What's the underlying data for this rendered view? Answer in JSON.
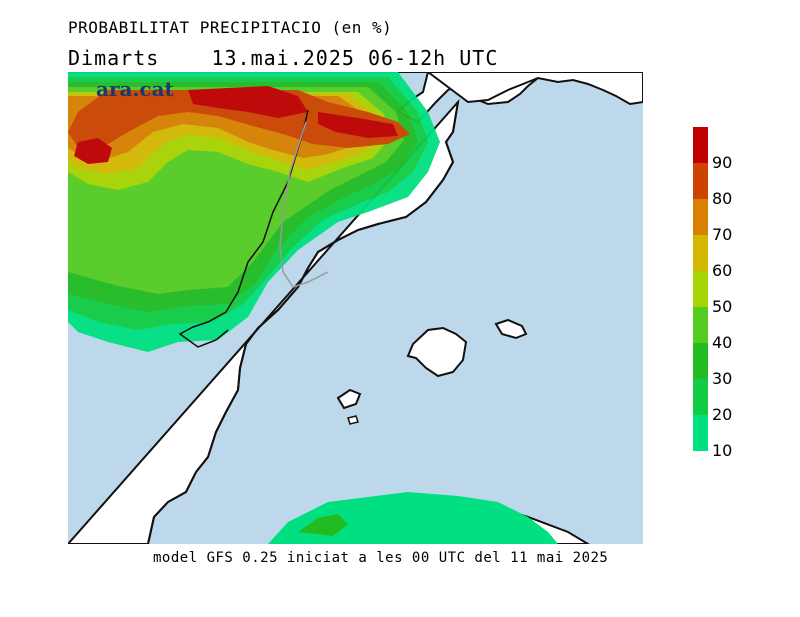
{
  "header": {
    "title": "PROBABILITAT PRECIPITACIO (en %)",
    "subtitle": "Dimarts    13.mai.2025 06-12h UTC"
  },
  "logo_text": "ara.cat",
  "footer": "model GFS 0.25 iniciat a les 00 UTC del 11 mai 2025",
  "legend": {
    "labels": [
      "90",
      "80",
      "70",
      "60",
      "50",
      "40",
      "30",
      "20",
      "10"
    ],
    "colors": [
      "#c00000",
      "#cc4400",
      "#d98000",
      "#d4b800",
      "#a8d400",
      "#55cc22",
      "#22bb22",
      "#11cc44",
      "#00e080"
    ]
  },
  "colors": {
    "sea": "#bcd8ea",
    "land": "#ffffff"
  }
}
